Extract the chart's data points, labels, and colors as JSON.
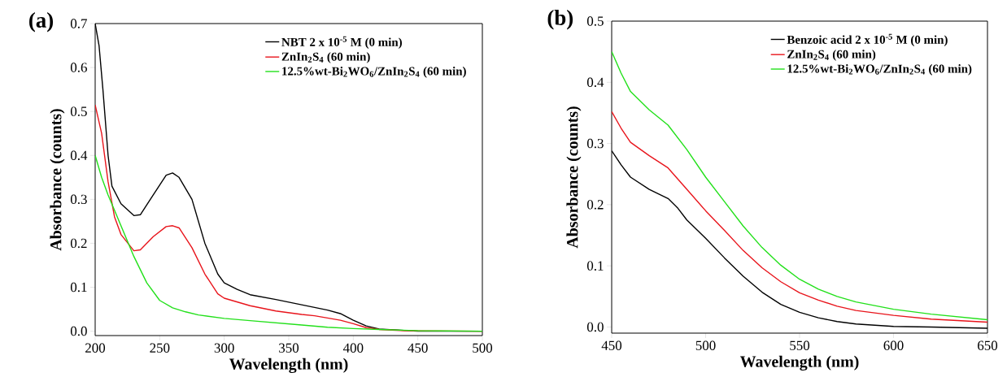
{
  "chart_data": [
    {
      "type": "line",
      "title": "(a)",
      "xlabel": "Wavelength (nm)",
      "ylabel": "Absorbance (counts)",
      "xlim": [
        200,
        500
      ],
      "ylim": [
        -0.01,
        0.7
      ],
      "xticks": [
        200,
        250,
        300,
        350,
        400,
        450,
        500
      ],
      "yticks": [
        {
          "value": 0,
          "label": "0.0"
        },
        0.1,
        0.2,
        0.3,
        0.4,
        0.5,
        0.6,
        0.7
      ],
      "legend": "top right",
      "grid": false,
      "marker": "none",
      "line_style": "solid",
      "series": [
        {
          "name": "NBT 2 x 10$^{-5}$ M (0 min)",
          "color": "#000000",
          "x": [
            200,
            203,
            206,
            210,
            213,
            220,
            230,
            235,
            245,
            255,
            260,
            265,
            275,
            285,
            295,
            300,
            310,
            320,
            340,
            360,
            380,
            390,
            400,
            410,
            420,
            430,
            450,
            500
          ],
          "values": [
            0.7,
            0.65,
            0.55,
            0.4,
            0.33,
            0.29,
            0.263,
            0.265,
            0.31,
            0.355,
            0.36,
            0.35,
            0.3,
            0.2,
            0.13,
            0.11,
            0.095,
            0.083,
            0.072,
            0.06,
            0.048,
            0.04,
            0.025,
            0.012,
            0.005,
            null,
            0.0,
            0.0
          ]
        },
        {
          "name": "ZnIn$_{2}$S$_{4}$ (60 min)",
          "color": "#e8141b",
          "x": [
            200,
            205,
            210,
            215,
            220,
            230,
            235,
            245,
            255,
            260,
            265,
            275,
            285,
            295,
            300,
            320,
            340,
            360,
            370,
            390,
            400,
            410,
            420,
            440,
            500
          ],
          "values": [
            0.515,
            0.45,
            0.34,
            0.26,
            0.22,
            0.183,
            0.185,
            0.215,
            0.238,
            0.24,
            0.235,
            0.19,
            0.13,
            0.085,
            0.075,
            0.058,
            0.046,
            0.038,
            0.035,
            0.025,
            0.017,
            0.008,
            0.004,
            0.001,
            0.0
          ]
        },
        {
          "name": "12.5%wt-Bi$_{2}$WO$_{6}$/ZnIn$_{2}$S$_{4}$ (60 min)",
          "color": "#22e01a",
          "x": [
            200,
            205,
            210,
            220,
            230,
            240,
            250,
            260,
            270,
            280,
            300,
            320,
            340,
            360,
            380,
            400,
            420,
            450,
            500
          ],
          "values": [
            0.4,
            0.35,
            0.31,
            0.24,
            0.17,
            0.11,
            0.07,
            0.053,
            0.044,
            0.037,
            0.029,
            0.024,
            0.019,
            0.014,
            0.009,
            0.006,
            0.004,
            0.001,
            0.0
          ]
        }
      ]
    },
    {
      "type": "line",
      "title": "(b)",
      "xlabel": "Wavelength (nm)",
      "ylabel": "Absorbance (counts)",
      "xlim": [
        450,
        650
      ],
      "ylim": [
        -0.01,
        0.5
      ],
      "xticks": [
        450,
        500,
        550,
        600,
        650
      ],
      "yticks": [
        {
          "value": 0,
          "label": "0.0"
        },
        0.1,
        0.2,
        0.3,
        0.4,
        0.5
      ],
      "legend": "top right",
      "grid": false,
      "marker": "none",
      "line_style": "solid",
      "series": [
        {
          "name": "Benzoic acid 2 x 10$^{-5}$ M (0 min)",
          "color": "#000000",
          "x": [
            450,
            455,
            460,
            470,
            480,
            485,
            490,
            500,
            510,
            520,
            530,
            540,
            550,
            560,
            570,
            580,
            600,
            620,
            650
          ],
          "values": [
            0.288,
            0.265,
            0.245,
            0.225,
            0.21,
            0.195,
            0.175,
            0.145,
            0.113,
            0.083,
            0.057,
            0.037,
            0.024,
            0.015,
            0.009,
            0.005,
            0.001,
            0.0,
            -0.002
          ]
        },
        {
          "name": "ZnIn$_{2}$S$_{4}$ (60 min)",
          "color": "#e8141b",
          "x": [
            450,
            455,
            460,
            470,
            480,
            490,
            500,
            510,
            520,
            530,
            540,
            550,
            560,
            570,
            580,
            600,
            620,
            650
          ],
          "values": [
            0.352,
            0.325,
            0.302,
            0.28,
            0.26,
            0.225,
            0.19,
            0.158,
            0.125,
            0.097,
            0.074,
            0.056,
            0.044,
            0.034,
            0.027,
            0.019,
            0.013,
            0.008
          ]
        },
        {
          "name": "12.5%wt-Bi$_{2}$WO$_{6}$/ZnIn$_{2}$S$_{4}$ (60 min)",
          "color": "#22e01a",
          "x": [
            450,
            455,
            460,
            470,
            480,
            490,
            500,
            510,
            520,
            530,
            540,
            550,
            560,
            570,
            580,
            600,
            620,
            650
          ],
          "values": [
            0.45,
            0.415,
            0.385,
            0.355,
            0.33,
            0.29,
            0.245,
            0.205,
            0.165,
            0.13,
            0.101,
            0.078,
            0.062,
            0.05,
            0.041,
            0.029,
            0.021,
            0.012
          ]
        }
      ]
    }
  ]
}
